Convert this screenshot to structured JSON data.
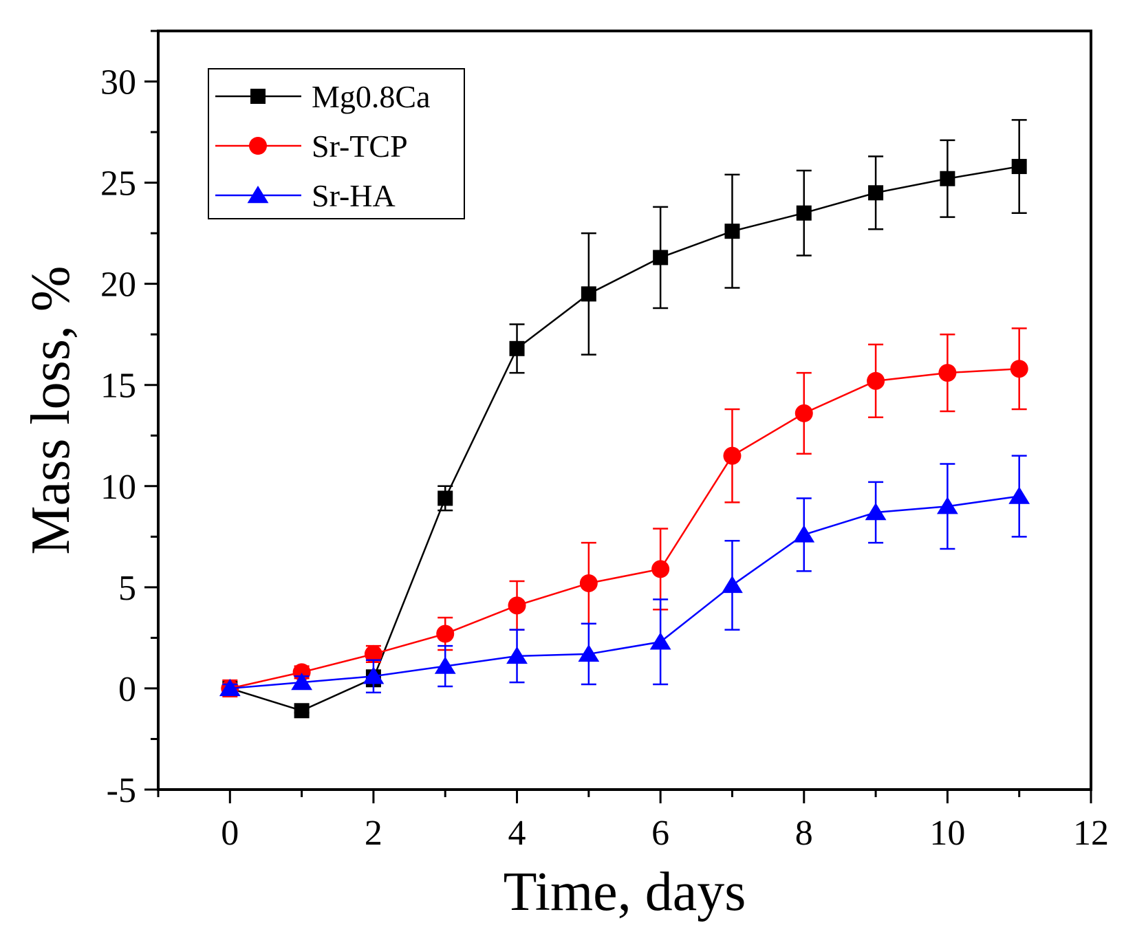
{
  "chart_data": {
    "type": "line",
    "title": "",
    "xlabel": "Time, days",
    "ylabel": "Mass loss, %",
    "xlim": [
      -1,
      12
    ],
    "ylim": [
      -5,
      32.5
    ],
    "xticks": [
      0,
      2,
      4,
      6,
      8,
      10,
      12
    ],
    "xtick_labels": [
      "0",
      "2",
      "4",
      "6",
      "8",
      "10",
      "12"
    ],
    "yticks": [
      -5,
      0,
      5,
      10,
      15,
      20,
      25,
      30
    ],
    "ytick_labels": [
      "-5",
      "0",
      "5",
      "10",
      "15",
      "20",
      "25",
      "30"
    ],
    "grid": false,
    "legend_position": "top-left",
    "series": [
      {
        "name": "Mg0.8Ca",
        "color": "#000000",
        "marker": "square",
        "x": [
          0,
          1,
          2,
          3,
          4,
          5,
          6,
          7,
          8,
          9,
          10,
          11
        ],
        "y": [
          0,
          -1.1,
          0.5,
          9.4,
          16.8,
          19.5,
          21.3,
          22.6,
          23.5,
          24.5,
          25.2,
          25.8
        ],
        "err": [
          0.2,
          0.1,
          0.4,
          0.6,
          1.2,
          3.0,
          2.5,
          2.8,
          2.1,
          1.8,
          1.9,
          2.3
        ]
      },
      {
        "name": "Sr-TCP",
        "color": "#ff0000",
        "marker": "circle",
        "x": [
          0,
          1,
          2,
          3,
          4,
          5,
          6,
          7,
          8,
          9,
          10,
          11
        ],
        "y": [
          0,
          0.8,
          1.7,
          2.7,
          4.1,
          5.2,
          5.9,
          11.5,
          13.6,
          15.2,
          15.6,
          15.8
        ],
        "err": [
          0.4,
          0.3,
          0.4,
          0.8,
          1.2,
          2.0,
          2.0,
          2.3,
          2.0,
          1.8,
          1.9,
          2.0
        ]
      },
      {
        "name": "Sr-HA",
        "color": "#0000ff",
        "marker": "triangle",
        "x": [
          0,
          1,
          2,
          3,
          4,
          5,
          6,
          7,
          8,
          9,
          10,
          11
        ],
        "y": [
          0,
          0.3,
          0.6,
          1.1,
          1.6,
          1.7,
          2.3,
          5.1,
          7.6,
          8.7,
          9.0,
          9.5
        ],
        "err": [
          0.2,
          0.3,
          0.8,
          1.0,
          1.3,
          1.5,
          2.1,
          2.2,
          1.8,
          1.5,
          2.1,
          2.0
        ]
      }
    ]
  }
}
